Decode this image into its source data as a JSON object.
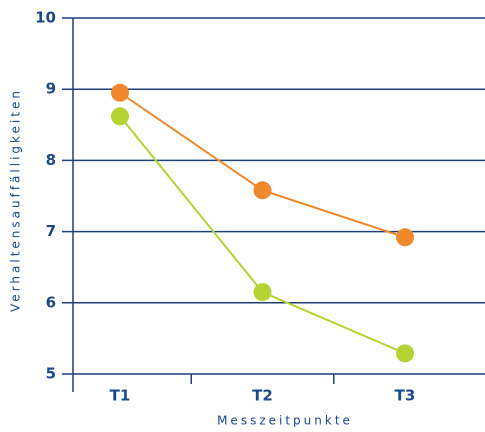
{
  "chart_data": {
    "type": "line",
    "categories": [
      "T1",
      "T2",
      "T3"
    ],
    "series": [
      {
        "color": "#f0892b",
        "values": [
          8.95,
          7.58,
          6.92
        ]
      },
      {
        "color": "#b6d334",
        "values": [
          8.62,
          6.15,
          5.29
        ]
      }
    ],
    "ylim": [
      5,
      10
    ],
    "yticks": [
      5,
      6,
      7,
      8,
      9,
      10
    ],
    "grid": true,
    "x_label": "Messzeitpunkte",
    "y_label": "Verhaltensauffälligkeiten"
  }
}
